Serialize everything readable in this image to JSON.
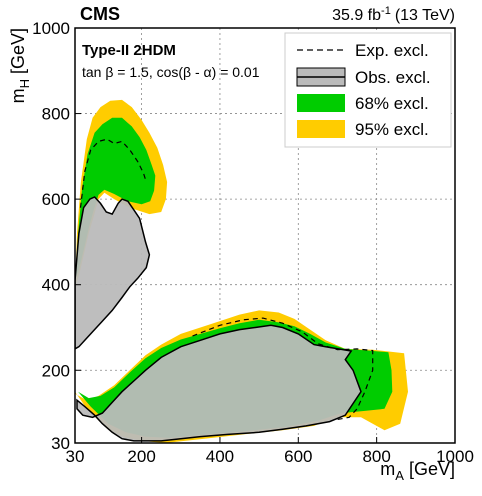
{
  "chart_data": {
    "type": "area",
    "experiment": "CMS",
    "luminosity": {
      "value": "35.9 fb",
      "exponent": "-1",
      "energy": "(13 TeV)"
    },
    "model": "Type-II 2HDM",
    "parameters": "tan β = 1.5, cos(β - α) = 0.01",
    "xlabel": {
      "main": "m",
      "sub": "A",
      "unit": " [GeV]"
    },
    "ylabel": {
      "main": "m",
      "sub": "H",
      "unit": " [GeV]"
    },
    "xlim": [
      30,
      1000
    ],
    "ylim": [
      30,
      1000
    ],
    "x_ticks": [
      30,
      200,
      400,
      600,
      800,
      1000
    ],
    "y_ticks": [
      30,
      200,
      400,
      600,
      800,
      1000
    ],
    "grid": true,
    "legend_position": "top-right",
    "legend": [
      {
        "key": "expected",
        "label": "Exp. excl."
      },
      {
        "key": "observed",
        "label": "Obs. excl."
      },
      {
        "key": "band68",
        "label": "68% excl."
      },
      {
        "key": "band95",
        "label": "95% excl."
      }
    ],
    "colors": {
      "band95": "#ffcc00",
      "band68": "#00cc00",
      "observed_fill": "#bbbbbb",
      "observed_line": "#000000",
      "expected_line": "#000000",
      "overlap": "#b0a050"
    },
    "regions": {
      "upper": {
        "band95": [
          [
            30,
            380
          ],
          [
            35,
            520
          ],
          [
            45,
            640
          ],
          [
            60,
            740
          ],
          [
            75,
            790
          ],
          [
            95,
            815
          ],
          [
            120,
            830
          ],
          [
            150,
            832
          ],
          [
            175,
            815
          ],
          [
            200,
            785
          ],
          [
            220,
            755
          ],
          [
            240,
            720
          ],
          [
            255,
            680
          ],
          [
            265,
            640
          ],
          [
            262,
            600
          ],
          [
            250,
            570
          ],
          [
            220,
            565
          ],
          [
            170,
            580
          ],
          [
            130,
            600
          ],
          [
            105,
            615
          ],
          [
            90,
            600
          ],
          [
            78,
            560
          ],
          [
            65,
            520
          ],
          [
            50,
            460
          ],
          [
            40,
            420
          ],
          [
            30,
            395
          ]
        ],
        "band68": [
          [
            30,
            400
          ],
          [
            38,
            520
          ],
          [
            48,
            625
          ],
          [
            62,
            705
          ],
          [
            80,
            755
          ],
          [
            100,
            775
          ],
          [
            125,
            790
          ],
          [
            150,
            790
          ],
          [
            175,
            770
          ],
          [
            195,
            745
          ],
          [
            212,
            715
          ],
          [
            225,
            682
          ],
          [
            235,
            655
          ],
          [
            232,
            620
          ],
          [
            222,
            595
          ],
          [
            200,
            588
          ],
          [
            165,
            595
          ],
          [
            130,
            612
          ],
          [
            105,
            622
          ],
          [
            90,
            610
          ],
          [
            78,
            575
          ],
          [
            66,
            535
          ],
          [
            52,
            480
          ],
          [
            40,
            435
          ],
          [
            30,
            412
          ]
        ],
        "expected": [
          [
            44,
            580
          ],
          [
            55,
            665
          ],
          [
            70,
            715
          ],
          [
            90,
            735
          ],
          [
            112,
            740
          ],
          [
            130,
            730
          ],
          [
            150,
            735
          ],
          [
            170,
            715
          ],
          [
            190,
            688
          ],
          [
            205,
            660
          ],
          [
            212,
            640
          ]
        ],
        "observed": [
          [
            30,
            410
          ],
          [
            40,
            520
          ],
          [
            52,
            580
          ],
          [
            68,
            600
          ],
          [
            80,
            605
          ],
          [
            95,
            590
          ],
          [
            110,
            570
          ],
          [
            125,
            565
          ],
          [
            140,
            590
          ],
          [
            150,
            600
          ],
          [
            165,
            595
          ],
          [
            180,
            575
          ],
          [
            195,
            555
          ],
          [
            210,
            500
          ],
          [
            220,
            470
          ],
          [
            212,
            440
          ],
          [
            190,
            415
          ],
          [
            170,
            395
          ],
          [
            150,
            370
          ],
          [
            125,
            340
          ],
          [
            100,
            315
          ],
          [
            75,
            290
          ],
          [
            55,
            270
          ],
          [
            40,
            255
          ],
          [
            30,
            250
          ]
        ]
      },
      "lower": {
        "band95": [
          [
            30,
            150
          ],
          [
            60,
            110
          ],
          [
            110,
            65
          ],
          [
            150,
            45
          ],
          [
            200,
            35
          ],
          [
            260,
            30
          ],
          [
            360,
            40
          ],
          [
            460,
            50
          ],
          [
            560,
            60
          ],
          [
            640,
            70
          ],
          [
            700,
            90
          ],
          [
            760,
            90
          ],
          [
            820,
            60
          ],
          [
            860,
            75
          ],
          [
            880,
            150
          ],
          [
            870,
            240
          ],
          [
            790,
            248
          ],
          [
            720,
            250
          ],
          [
            670,
            270
          ],
          [
            630,
            295
          ],
          [
            590,
            320
          ],
          [
            550,
            335
          ],
          [
            500,
            340
          ],
          [
            450,
            330
          ],
          [
            400,
            315
          ],
          [
            350,
            300
          ],
          [
            300,
            285
          ],
          [
            250,
            260
          ],
          [
            210,
            235
          ],
          [
            170,
            200
          ],
          [
            130,
            165
          ],
          [
            90,
            140
          ],
          [
            60,
            130
          ],
          [
            30,
            145
          ]
        ],
        "band68": [
          [
            38,
            150
          ],
          [
            70,
            115
          ],
          [
            115,
            75
          ],
          [
            160,
            55
          ],
          [
            210,
            45
          ],
          [
            270,
            42
          ],
          [
            370,
            50
          ],
          [
            470,
            58
          ],
          [
            570,
            68
          ],
          [
            650,
            82
          ],
          [
            710,
            100
          ],
          [
            770,
            105
          ],
          [
            820,
            110
          ],
          [
            840,
            150
          ],
          [
            838,
            200
          ],
          [
            830,
            242
          ],
          [
            780,
            246
          ],
          [
            720,
            250
          ],
          [
            670,
            265
          ],
          [
            630,
            285
          ],
          [
            590,
            303
          ],
          [
            550,
            312
          ],
          [
            500,
            318
          ],
          [
            450,
            310
          ],
          [
            400,
            298
          ],
          [
            350,
            285
          ],
          [
            300,
            272
          ],
          [
            250,
            252
          ],
          [
            210,
            228
          ],
          [
            170,
            195
          ],
          [
            130,
            160
          ],
          [
            95,
            140
          ],
          [
            65,
            135
          ],
          [
            38,
            150
          ]
        ],
        "expected": [
          [
            330,
            280
          ],
          [
            400,
            305
          ],
          [
            460,
            318
          ],
          [
            510,
            322
          ],
          [
            560,
            310
          ],
          [
            610,
            290
          ],
          [
            650,
            262
          ],
          [
            700,
            248
          ],
          [
            750,
            250
          ],
          [
            790,
            246
          ],
          [
            790,
            200
          ],
          [
            770,
            150
          ],
          [
            750,
            110
          ],
          [
            730,
            90
          ],
          [
            700,
            85
          ]
        ],
        "observed": [
          [
            35,
            130
          ],
          [
            55,
            115
          ],
          [
            80,
            95
          ],
          [
            100,
            75
          ],
          [
            125,
            55
          ],
          [
            150,
            40
          ],
          [
            180,
            35
          ],
          [
            250,
            35
          ],
          [
            300,
            40
          ],
          [
            350,
            45
          ],
          [
            420,
            50
          ],
          [
            500,
            55
          ],
          [
            560,
            62
          ],
          [
            620,
            70
          ],
          [
            680,
            80
          ],
          [
            720,
            95
          ],
          [
            760,
            150
          ],
          [
            740,
            200
          ],
          [
            720,
            225
          ],
          [
            735,
            245
          ],
          [
            670,
            255
          ],
          [
            640,
            260
          ],
          [
            600,
            285
          ],
          [
            560,
            300
          ],
          [
            530,
            305
          ],
          [
            490,
            300
          ],
          [
            450,
            295
          ],
          [
            400,
            285
          ],
          [
            350,
            270
          ],
          [
            300,
            255
          ],
          [
            250,
            230
          ],
          [
            210,
            200
          ],
          [
            180,
            175
          ],
          [
            150,
            150
          ],
          [
            125,
            125
          ],
          [
            100,
            100
          ],
          [
            75,
            90
          ],
          [
            50,
            95
          ],
          [
            35,
            110
          ]
        ]
      }
    }
  }
}
